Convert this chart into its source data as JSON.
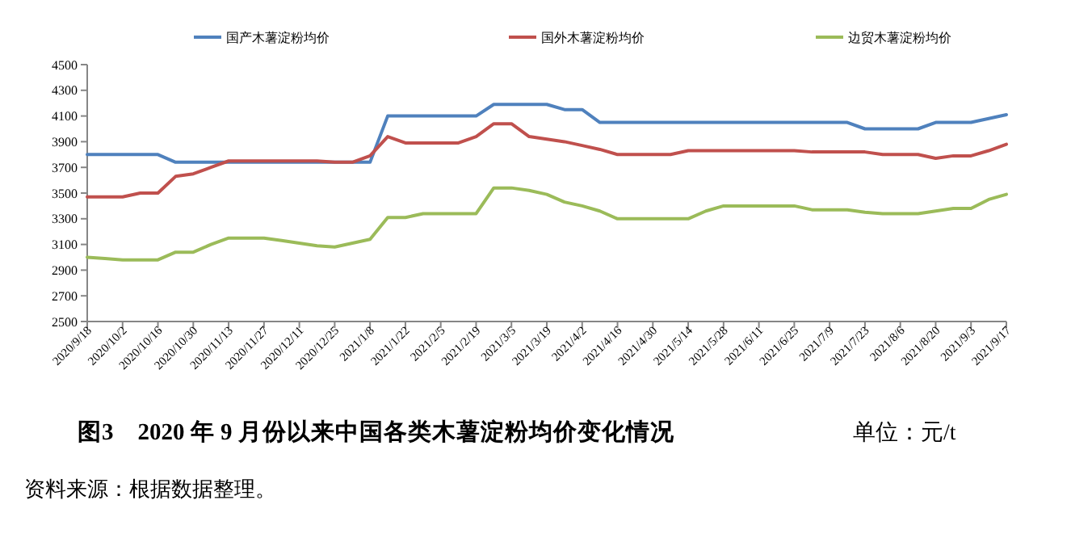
{
  "chart_data": {
    "type": "line",
    "title": "图3　2020 年 9 月份以来中国各类木薯淀粉均价变化情况",
    "subtitle": "单位：元/t",
    "annotations": [
      "资料来源：根据数据整理。"
    ],
    "categories": [
      "2020/9/18",
      null,
      "2020/10/2",
      null,
      "2020/10/16",
      null,
      "2020/10/30",
      null,
      "2020/11/13",
      null,
      "2020/11/27",
      null,
      "2020/12/11",
      null,
      "2020/12/25",
      null,
      "2021/1/8",
      null,
      "2021/1/22",
      null,
      "2021/2/5",
      null,
      "2021/2/19",
      null,
      "2021/3/5",
      null,
      "2021/3/19",
      null,
      "2021/4/2",
      null,
      "2021/4/16",
      null,
      "2021/4/30",
      null,
      "2021/5/14",
      null,
      "2021/5/28",
      null,
      "2021/6/11",
      null,
      "2021/6/25",
      null,
      "2021/7/9",
      null,
      "2021/7/23",
      null,
      "2021/8/6",
      null,
      "2021/8/20",
      null,
      "2021/9/3",
      null,
      "2021/9/17"
    ],
    "series": [
      {
        "name": "国产木薯淀粉均价",
        "color": "#4f81bd",
        "values": [
          3800,
          3800,
          3800,
          3800,
          3800,
          3740,
          3740,
          3740,
          3740,
          3740,
          3740,
          3740,
          3740,
          3740,
          3740,
          3740,
          3740,
          4100,
          4100,
          4100,
          4100,
          4100,
          4100,
          4190,
          4190,
          4190,
          4190,
          4150,
          4150,
          4050,
          4050,
          4050,
          4050,
          4050,
          4050,
          4050,
          4050,
          4050,
          4050,
          4050,
          4050,
          4050,
          4050,
          4050,
          4000,
          4000,
          4000,
          4000,
          4050,
          4050,
          4050,
          4080,
          4110
        ]
      },
      {
        "name": "国外木薯淀粉均价",
        "color": "#c0504d",
        "values": [
          3470,
          3470,
          3470,
          3500,
          3500,
          3630,
          3650,
          3700,
          3750,
          3750,
          3750,
          3750,
          3750,
          3750,
          3740,
          3740,
          3790,
          3940,
          3890,
          3890,
          3890,
          3890,
          3940,
          4040,
          4040,
          3940,
          3920,
          3900,
          3870,
          3840,
          3800,
          3800,
          3800,
          3800,
          3830,
          3830,
          3830,
          3830,
          3830,
          3830,
          3830,
          3820,
          3820,
          3820,
          3820,
          3800,
          3800,
          3800,
          3770,
          3790,
          3790,
          3830,
          3880
        ]
      },
      {
        "name": "边贸木薯淀粉均价",
        "color": "#9bbb59",
        "values": [
          3000,
          2990,
          2980,
          2980,
          2980,
          3040,
          3040,
          3100,
          3150,
          3150,
          3150,
          3130,
          3110,
          3090,
          3080,
          3110,
          3140,
          3310,
          3310,
          3340,
          3340,
          3340,
          3340,
          3540,
          3540,
          3520,
          3490,
          3430,
          3400,
          3360,
          3300,
          3300,
          3300,
          3300,
          3300,
          3360,
          3400,
          3400,
          3400,
          3400,
          3400,
          3370,
          3370,
          3370,
          3350,
          3340,
          3340,
          3340,
          3360,
          3380,
          3380,
          3450,
          3490
        ]
      }
    ],
    "ylim": [
      2500,
      4500
    ],
    "yticks": [
      2500,
      2700,
      2900,
      3100,
      3300,
      3500,
      3700,
      3900,
      4100,
      4300,
      4500
    ],
    "legend": "top",
    "grid": false,
    "marker": "none",
    "line_style": "solid"
  }
}
